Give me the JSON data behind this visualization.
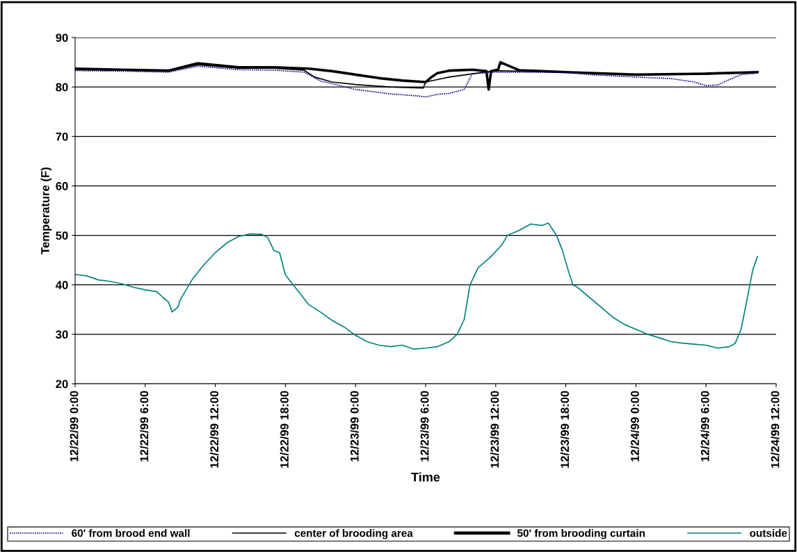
{
  "chart_data": {
    "type": "line",
    "xlabel": "Time",
    "ylabel": "Temperature (F)",
    "xlim": [
      "1999-12-22T00:00",
      "1999-12-24T12:00"
    ],
    "xticks": [
      {
        "value": "1999-12-22T00:00",
        "label": "12/22/99 0:00"
      },
      {
        "value": "1999-12-22T06:00",
        "label": "12/22/99 6:00"
      },
      {
        "value": "1999-12-22T12:00",
        "label": "12/22/99 12:00"
      },
      {
        "value": "1999-12-22T18:00",
        "label": "12/22/99 18:00"
      },
      {
        "value": "1999-12-23T00:00",
        "label": "12/23/99 0:00"
      },
      {
        "value": "1999-12-23T06:00",
        "label": "12/23/99 6:00"
      },
      {
        "value": "1999-12-23T12:00",
        "label": "12/23/99 12:00"
      },
      {
        "value": "1999-12-23T18:00",
        "label": "12/23/99 18:00"
      },
      {
        "value": "1999-12-24T00:00",
        "label": "12/24/99 0:00"
      },
      {
        "value": "1999-12-24T06:00",
        "label": "12/24/99 6:00"
      },
      {
        "value": "1999-12-24T12:00",
        "label": "12/24/99 12:00"
      }
    ],
    "ylim": [
      20,
      90
    ],
    "yticks": [
      20,
      30,
      40,
      50,
      60,
      70,
      80,
      90
    ],
    "grid": "y",
    "legend": "bottom",
    "marker": "none",
    "series": [
      {
        "name": "60' from brood end wall",
        "color": "#000080",
        "line_style": "dotted",
        "x": [
          "1999-12-22T00:00",
          "1999-12-22T04:00",
          "1999-12-22T08:00",
          "1999-12-22T10:30",
          "1999-12-22T14:00",
          "1999-12-22T17:00",
          "1999-12-22T19:36",
          "1999-12-22T21:00",
          "1999-12-22T22:18",
          "1999-12-23T00:00",
          "1999-12-23T03:00",
          "1999-12-23T05:18",
          "1999-12-23T06:00",
          "1999-12-23T07:00",
          "1999-12-23T08:00",
          "1999-12-23T09:18",
          "1999-12-23T10:00",
          "1999-12-23T12:00",
          "1999-12-23T18:00",
          "1999-12-23T20:00",
          "1999-12-24T00:00",
          "1999-12-24T03:00",
          "1999-12-24T05:00",
          "1999-12-24T06:00",
          "1999-12-24T07:00",
          "1999-12-24T08:00",
          "1999-12-24T09:00",
          "1999-12-24T10:24"
        ],
        "values": [
          83.3,
          83.2,
          83,
          84.2,
          83.5,
          83.4,
          83,
          81.2,
          80.5,
          79.5,
          78.6,
          78.2,
          78,
          78.5,
          78.7,
          79.5,
          82.7,
          83,
          83,
          82.5,
          82,
          81.7,
          81,
          80.3,
          80.4,
          81.5,
          82.5,
          82.8
        ]
      },
      {
        "name": "center of brooding area",
        "color": "#000000",
        "line_style": "solid",
        "x": [
          "1999-12-22T00:00",
          "1999-12-22T04:00",
          "1999-12-22T08:00",
          "1999-12-22T10:30",
          "1999-12-22T14:00",
          "1999-12-22T17:00",
          "1999-12-22T19:36",
          "1999-12-22T20:30",
          "1999-12-22T22:00",
          "1999-12-23T00:00",
          "1999-12-23T03:00",
          "1999-12-23T05:48",
          "1999-12-23T06:00",
          "1999-12-23T07:00",
          "1999-12-23T08:00",
          "1999-12-23T09:30",
          "1999-12-23T11:00",
          "1999-12-23T12:00",
          "1999-12-23T18:00",
          "1999-12-24T00:00",
          "1999-12-24T06:00",
          "1999-12-24T10:24"
        ],
        "values": [
          83.5,
          83.4,
          83.2,
          84.5,
          83.8,
          83.8,
          83.4,
          82,
          81,
          80.5,
          80,
          79.8,
          81,
          81.5,
          82,
          82.5,
          83,
          83.3,
          83,
          82.5,
          82.6,
          83
        ]
      },
      {
        "name": "50' from brooding curtain",
        "color": "#000000",
        "line_style": "solid",
        "x": [
          "1999-12-22T00:00",
          "1999-12-22T04:00",
          "1999-12-22T08:00",
          "1999-12-22T10:30",
          "1999-12-22T14:00",
          "1999-12-22T17:00",
          "1999-12-22T20:00",
          "1999-12-22T22:00",
          "1999-12-23T00:00",
          "1999-12-23T02:00",
          "1999-12-23T04:00",
          "1999-12-23T06:00",
          "1999-12-23T06:30",
          "1999-12-23T07:00",
          "1999-12-23T08:00",
          "1999-12-23T10:00",
          "1999-12-23T11:12",
          "1999-12-23T11:24",
          "1999-12-23T11:36",
          "1999-12-23T12:12",
          "1999-12-23T12:24",
          "1999-12-23T14:00",
          "1999-12-23T18:00",
          "1999-12-24T00:00",
          "1999-12-24T06:00",
          "1999-12-24T10:24"
        ],
        "values": [
          83.7,
          83.5,
          83.3,
          84.8,
          84,
          84,
          83.7,
          83.2,
          82.5,
          81.8,
          81.3,
          81,
          82,
          82.8,
          83.3,
          83.5,
          83.2,
          79.5,
          83.2,
          83.5,
          85,
          83.4,
          83,
          82.5,
          82.7,
          83
        ]
      },
      {
        "name": "outside",
        "color": "#008080",
        "line_style": "solid",
        "x": [
          "1999-12-22T00:00",
          "1999-12-22T01:00",
          "1999-12-22T02:00",
          "1999-12-22T03:00",
          "1999-12-22T04:00",
          "1999-12-22T05:00",
          "1999-12-22T06:00",
          "1999-12-22T07:00",
          "1999-12-22T07:30",
          "1999-12-22T08:00",
          "1999-12-22T08:18",
          "1999-12-22T08:48",
          "1999-12-22T09:00",
          "1999-12-22T10:00",
          "1999-12-22T11:00",
          "1999-12-22T12:00",
          "1999-12-22T13:00",
          "1999-12-22T14:00",
          "1999-12-22T15:00",
          "1999-12-22T16:00",
          "1999-12-22T16:30",
          "1999-12-22T17:00",
          "1999-12-22T17:30",
          "1999-12-22T18:00",
          "1999-12-22T19:00",
          "1999-12-22T20:00",
          "1999-12-22T21:00",
          "1999-12-22T22:00",
          "1999-12-22T23:00",
          "1999-12-23T00:00",
          "1999-12-23T01:00",
          "1999-12-23T02:00",
          "1999-12-23T03:00",
          "1999-12-23T04:00",
          "1999-12-23T05:00",
          "1999-12-23T06:00",
          "1999-12-23T07:00",
          "1999-12-23T08:00",
          "1999-12-23T08:42",
          "1999-12-23T09:18",
          "1999-12-23T09:48",
          "1999-12-23T10:30",
          "1999-12-23T11:30",
          "1999-12-23T12:30",
          "1999-12-23T13:00",
          "1999-12-23T14:00",
          "1999-12-23T15:00",
          "1999-12-23T16:00",
          "1999-12-23T16:30",
          "1999-12-23T17:12",
          "1999-12-23T17:42",
          "1999-12-23T18:12",
          "1999-12-23T18:36",
          "1999-12-23T19:00",
          "1999-12-23T20:00",
          "1999-12-23T21:00",
          "1999-12-23T22:00",
          "1999-12-23T23:00",
          "1999-12-24T00:00",
          "1999-12-24T01:00",
          "1999-12-24T02:00",
          "1999-12-24T03:00",
          "1999-12-24T04:00",
          "1999-12-24T05:00",
          "1999-12-24T06:00",
          "1999-12-24T07:00",
          "1999-12-24T08:00",
          "1999-12-24T08:30",
          "1999-12-24T09:00",
          "1999-12-24T09:30",
          "1999-12-24T10:00",
          "1999-12-24T10:24"
        ],
        "values": [
          42.1,
          41.8,
          41,
          40.7,
          40.2,
          39.5,
          39,
          38.6,
          37.5,
          36.5,
          34.5,
          35.5,
          37,
          41,
          44,
          46.5,
          48.5,
          49.8,
          50.3,
          50.2,
          49.5,
          47,
          46.5,
          42,
          39,
          36,
          34.5,
          32.8,
          31.5,
          29.8,
          28.5,
          27.8,
          27.5,
          27.8,
          27,
          27.2,
          27.5,
          28.5,
          30,
          33,
          40,
          43.5,
          45.5,
          48,
          50,
          51,
          52.3,
          52,
          52.5,
          50,
          47,
          43,
          40,
          39.5,
          37.5,
          35.5,
          33.5,
          32,
          31,
          30,
          29.3,
          28.5,
          28.2,
          28,
          27.8,
          27.2,
          27.5,
          28.2,
          31,
          37,
          43,
          45.7
        ]
      }
    ]
  }
}
